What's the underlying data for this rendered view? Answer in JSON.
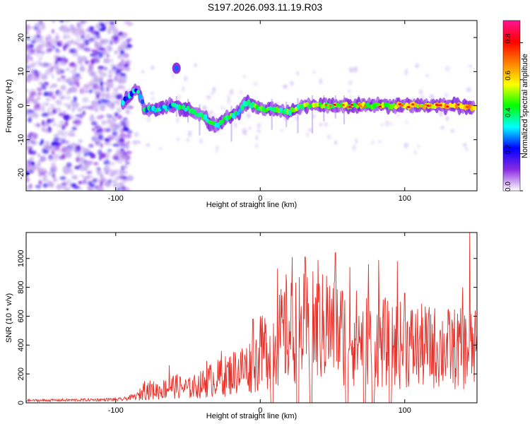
{
  "title": "S197.2026.093.11.19.R03",
  "chart_data": [
    {
      "type": "heatmap",
      "xlabel": "Height of straight line (km)",
      "ylabel": "Frequency (Hz)",
      "xlim": [
        -162,
        150
      ],
      "ylim": [
        -25,
        25
      ],
      "xticks": [
        -100,
        0,
        100
      ],
      "yticks": [
        -20,
        -10,
        0,
        10,
        20
      ],
      "colorbar": {
        "label": "Normalized spectral amplitude",
        "range": [
          0,
          0.92
        ],
        "ticks": [
          0.0,
          0.2,
          0.4,
          0.6,
          0.8
        ],
        "colormap": [
          "#ffffff",
          "#8a2be2",
          "#0000ff",
          "#00ffff",
          "#00ff00",
          "#ffff00",
          "#ff8000",
          "#ff0000",
          "#ff1493"
        ]
      },
      "noise_region_x": [
        -162,
        -93
      ],
      "signal_ridge": [
        {
          "x": -95,
          "y": 1
        },
        {
          "x": -90,
          "y": 3
        },
        {
          "x": -85,
          "y": 5
        },
        {
          "x": -80,
          "y": -1
        },
        {
          "x": -70,
          "y": -1
        },
        {
          "x": -60,
          "y": 0
        },
        {
          "x": -50,
          "y": -1
        },
        {
          "x": -40,
          "y": -3
        },
        {
          "x": -35,
          "y": -5
        },
        {
          "x": -30,
          "y": -6
        },
        {
          "x": -25,
          "y": -4
        },
        {
          "x": -15,
          "y": -2
        },
        {
          "x": -10,
          "y": 1
        },
        {
          "x": 0,
          "y": -1
        },
        {
          "x": 10,
          "y": -1
        },
        {
          "x": 20,
          "y": -2
        },
        {
          "x": 30,
          "y": 0
        },
        {
          "x": 40,
          "y": 0
        },
        {
          "x": 60,
          "y": 0
        },
        {
          "x": 80,
          "y": 0
        },
        {
          "x": 100,
          "y": 0
        },
        {
          "x": 120,
          "y": 0
        },
        {
          "x": 140,
          "y": 0
        },
        {
          "x": 148,
          "y": -1
        }
      ],
      "secondary_feature": {
        "x": -58,
        "y": 11
      }
    },
    {
      "type": "line",
      "xlabel": "Height of straight line (km)",
      "ylabel": "SNR (10 * v/v)",
      "xlim": [
        -162,
        150
      ],
      "ylim": [
        0,
        1180
      ],
      "xticks": [
        -100,
        0,
        100
      ],
      "yticks": [
        0,
        200,
        400,
        600,
        800,
        1000
      ],
      "color": "#e8312a",
      "envelope": [
        {
          "x": -162,
          "y": 20
        },
        {
          "x": -120,
          "y": 25
        },
        {
          "x": -95,
          "y": 30
        },
        {
          "x": -85,
          "y": 60
        },
        {
          "x": -80,
          "y": 140
        },
        {
          "x": -70,
          "y": 130
        },
        {
          "x": -60,
          "y": 180
        },
        {
          "x": -50,
          "y": 150
        },
        {
          "x": -40,
          "y": 200
        },
        {
          "x": -35,
          "y": 240
        },
        {
          "x": -25,
          "y": 280
        },
        {
          "x": -15,
          "y": 350
        },
        {
          "x": -5,
          "y": 400
        },
        {
          "x": 5,
          "y": 600
        },
        {
          "x": 20,
          "y": 750
        },
        {
          "x": 35,
          "y": 800
        },
        {
          "x": 50,
          "y": 780
        },
        {
          "x": 65,
          "y": 700
        },
        {
          "x": 80,
          "y": 650
        },
        {
          "x": 95,
          "y": 620
        },
        {
          "x": 110,
          "y": 600
        },
        {
          "x": 130,
          "y": 580
        },
        {
          "x": 150,
          "y": 560
        }
      ],
      "peaks": [
        {
          "x": -80,
          "y": 150
        },
        {
          "x": -63,
          "y": 260
        },
        {
          "x": -37,
          "y": 290
        },
        {
          "x": -27,
          "y": 360
        },
        {
          "x": -5,
          "y": 580
        },
        {
          "x": 0,
          "y": 600
        },
        {
          "x": 12,
          "y": 930
        },
        {
          "x": 18,
          "y": 890
        },
        {
          "x": 22,
          "y": 1010
        },
        {
          "x": 31,
          "y": 1010
        },
        {
          "x": 40,
          "y": 990
        },
        {
          "x": 46,
          "y": 880
        },
        {
          "x": 52,
          "y": 1040
        },
        {
          "x": 62,
          "y": 940
        },
        {
          "x": 75,
          "y": 960
        },
        {
          "x": 82,
          "y": 990
        },
        {
          "x": 95,
          "y": 980
        },
        {
          "x": 100,
          "y": 760
        },
        {
          "x": 140,
          "y": 800
        },
        {
          "x": 145,
          "y": 1180
        }
      ],
      "dropouts": [
        8,
        26,
        35,
        60,
        72,
        78,
        90
      ]
    }
  ]
}
